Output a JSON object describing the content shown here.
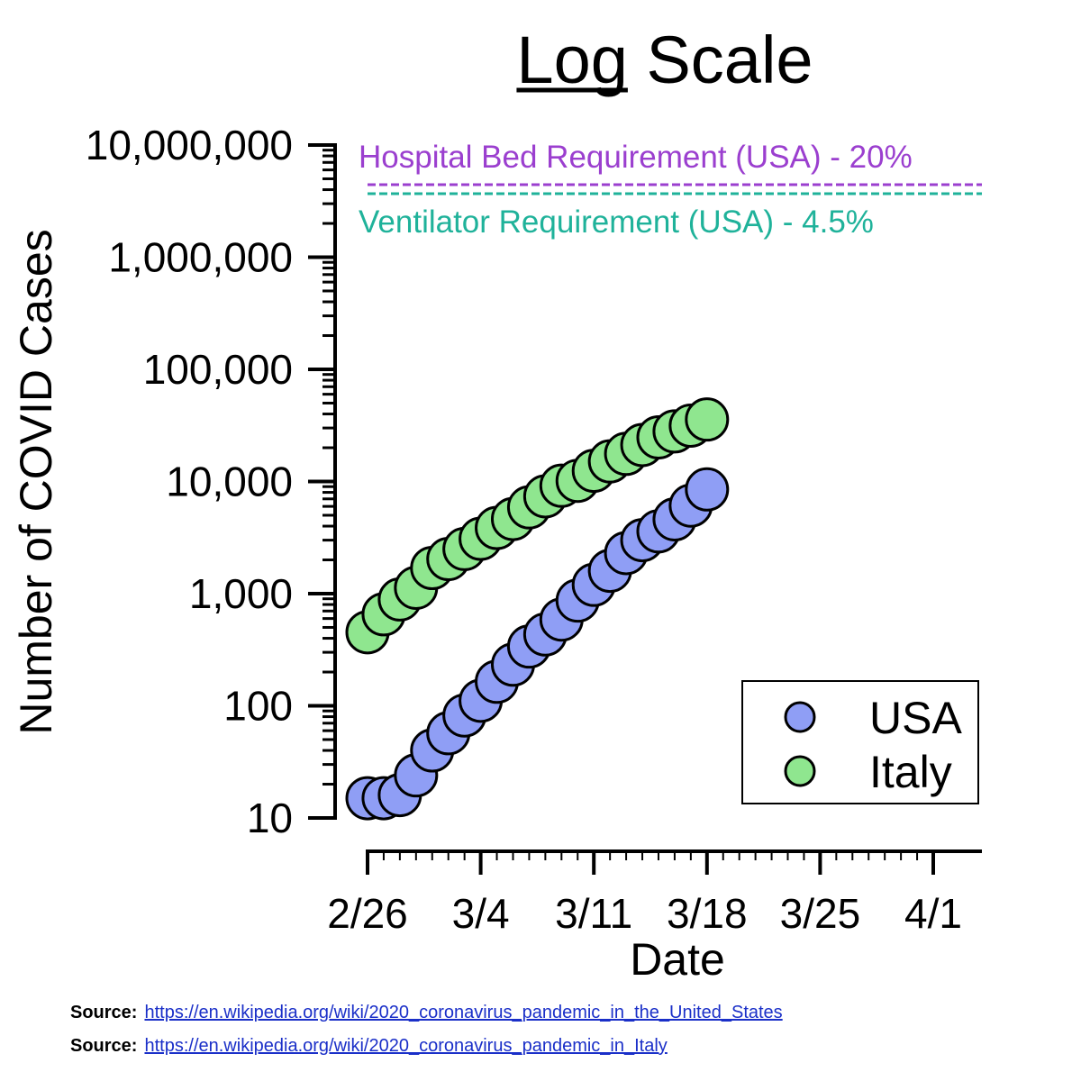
{
  "chart_data": {
    "type": "scatter",
    "title": "Log Scale",
    "title_underlined_word": "Log",
    "xlabel": "Date",
    "ylabel": "Number of COVID Cases",
    "yscale": "log",
    "ylim": [
      10,
      10000000
    ],
    "yticks": [
      10,
      100,
      1000,
      10000,
      100000,
      1000000,
      10000000
    ],
    "ytick_labels": [
      "10",
      "100",
      "1,000",
      "10,000",
      "100,000",
      "1,000,000",
      "10,000,000"
    ],
    "xlim": [
      "2020-02-26",
      "2020-04-01"
    ],
    "xticks": [
      "2020-02-26",
      "2020-03-04",
      "2020-03-11",
      "2020-03-18",
      "2020-03-25",
      "2020-04-01"
    ],
    "xtick_labels": [
      "2/26",
      "3/4",
      "3/11",
      "3/18",
      "3/25",
      "4/1"
    ],
    "grid": false,
    "legend_position": "bottom-right",
    "series": [
      {
        "name": "USA",
        "color": "#8f9ef5",
        "x": [
          "2020-02-26",
          "2020-02-27",
          "2020-02-28",
          "2020-02-29",
          "2020-03-01",
          "2020-03-02",
          "2020-03-03",
          "2020-03-04",
          "2020-03-05",
          "2020-03-06",
          "2020-03-07",
          "2020-03-08",
          "2020-03-09",
          "2020-03-10",
          "2020-03-11",
          "2020-03-12",
          "2020-03-13",
          "2020-03-14",
          "2020-03-15",
          "2020-03-16",
          "2020-03-17",
          "2020-03-18"
        ],
        "y": [
          15,
          15,
          16,
          24,
          40,
          57,
          82,
          111,
          164,
          233,
          338,
          433,
          588,
          868,
          1200,
          1600,
          2300,
          3000,
          3600,
          4600,
          6100,
          8500
        ]
      },
      {
        "name": "Italy",
        "color": "#8fe68f",
        "x": [
          "2020-02-26",
          "2020-02-27",
          "2020-02-28",
          "2020-02-29",
          "2020-03-01",
          "2020-03-02",
          "2020-03-03",
          "2020-03-04",
          "2020-03-05",
          "2020-03-06",
          "2020-03-07",
          "2020-03-08",
          "2020-03-09",
          "2020-03-10",
          "2020-03-11",
          "2020-03-12",
          "2020-03-13",
          "2020-03-14",
          "2020-03-15",
          "2020-03-16",
          "2020-03-17",
          "2020-03-18"
        ],
        "y": [
          453,
          655,
          888,
          1128,
          1694,
          2036,
          2502,
          3089,
          3858,
          4636,
          5883,
          7375,
          9172,
          10149,
          12462,
          15113,
          17660,
          21157,
          24747,
          27980,
          31506,
          35713
        ]
      }
    ],
    "annotations": [
      {
        "text": "Hospital Bed Requirement (USA)  -  20%",
        "color": "#9b3fcf",
        "line_value": 4000000
      },
      {
        "text": "Ventilator Requirement (USA)    -    4.5%",
        "color": "#1fb29a",
        "line_value": 3400000
      }
    ]
  },
  "sources": [
    {
      "label": "Source:",
      "url": "https://en.wikipedia.org/wiki/2020_coronavirus_pandemic_in_the_United_States"
    },
    {
      "label": "Source:",
      "url": "https://en.wikipedia.org/wiki/2020_coronavirus_pandemic_in_Italy"
    }
  ]
}
